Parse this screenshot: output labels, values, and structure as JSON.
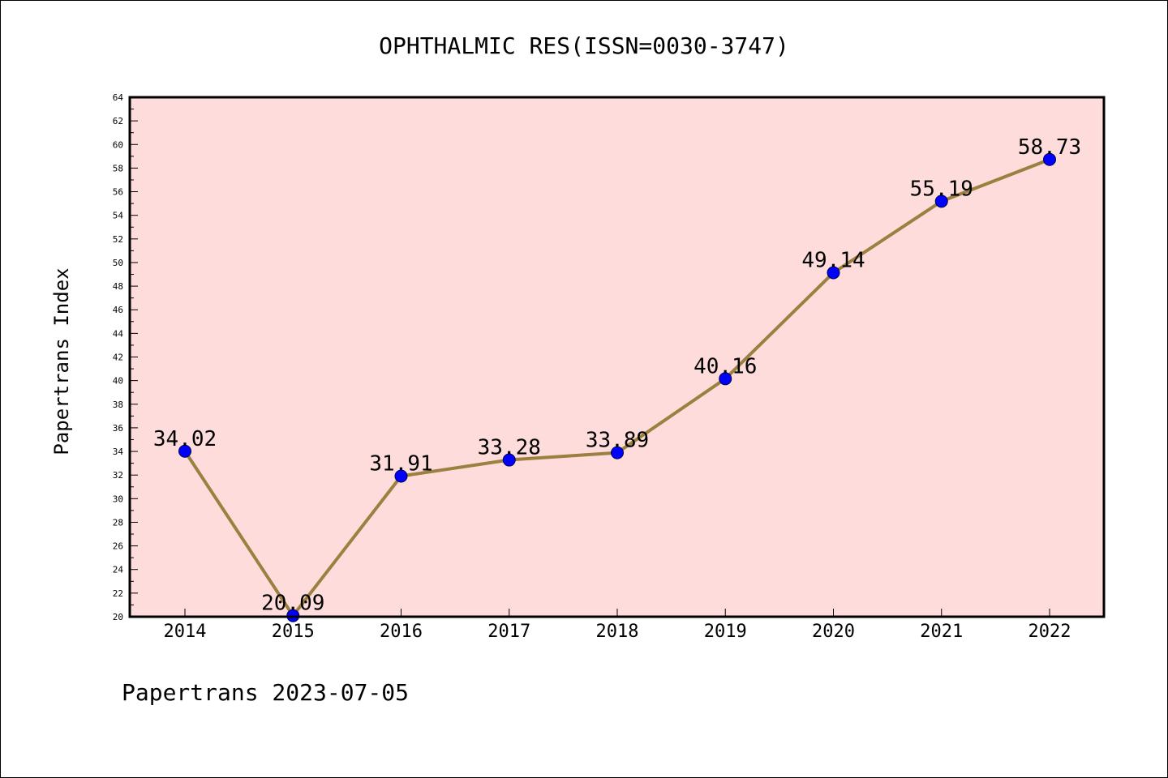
{
  "chart_data": {
    "type": "line",
    "title": "OPHTHALMIC RES(ISSN=0030-3747)",
    "xlabel": "",
    "ylabel": "Papertrans Index",
    "footer": "Papertrans 2023-07-05",
    "categories": [
      "2014",
      "2015",
      "2016",
      "2017",
      "2018",
      "2019",
      "2020",
      "2021",
      "2022"
    ],
    "series": [
      {
        "values": [
          34.02,
          20.09,
          31.91,
          33.28,
          33.89,
          40.16,
          49.14,
          55.19,
          58.73
        ],
        "labels": [
          "34.02",
          "20.09",
          "31.91",
          "33.28",
          "33.89",
          "40.16",
          "49.14",
          "55.19",
          "58.73"
        ]
      }
    ],
    "ylim": [
      20,
      64
    ],
    "yticks": [
      "20",
      "22",
      "24",
      "26",
      "28",
      "30",
      "32",
      "34",
      "36",
      "38",
      "40",
      "42",
      "44",
      "46",
      "48",
      "50",
      "52",
      "54",
      "56",
      "58",
      "60",
      "62",
      "64"
    ],
    "grid": false,
    "colors": {
      "plot_background": "#fddcdb",
      "line": "#9b8040",
      "marker": "#0000ff",
      "axis": "#000000"
    }
  }
}
